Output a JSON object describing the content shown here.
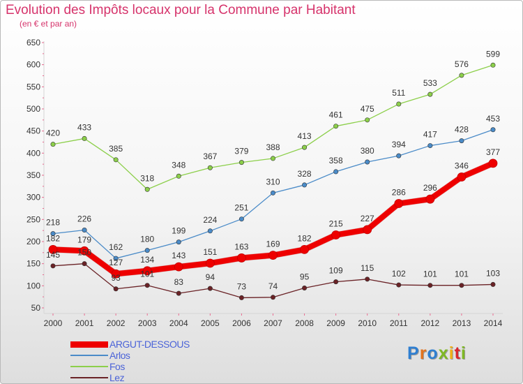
{
  "title": "Evolution des Impôts locaux pour la Commune par Habitant",
  "subtitle": "(en € et par an)",
  "logo": {
    "text": "Proxiti",
    "letter_colors": [
      "#2f7fd1",
      "#e2731e",
      "#2f7fd1",
      "#7fb824",
      "#f0b015",
      "#d8262e",
      "#7fb824"
    ]
  },
  "chart_data": {
    "type": "line",
    "x": [
      2000,
      2001,
      2002,
      2003,
      2004,
      2005,
      2006,
      2007,
      2008,
      2009,
      2010,
      2011,
      2012,
      2013,
      2014
    ],
    "ylim": [
      50,
      650
    ],
    "yticks": [
      50,
      100,
      150,
      200,
      250,
      300,
      350,
      400,
      450,
      500,
      550,
      600,
      650
    ],
    "grid": false,
    "legend_position": "bottom-left",
    "series": [
      {
        "name": "ARGUT-DESSOUS",
        "color": "#ee0000",
        "values": [
          182,
          179,
          127,
          134,
          143,
          151,
          163,
          169,
          182,
          215,
          227,
          286,
          296,
          346,
          377
        ]
      },
      {
        "name": "Arlos",
        "color": "#4a8bc8",
        "values": [
          218,
          226,
          162,
          180,
          199,
          224,
          251,
          310,
          328,
          358,
          380,
          394,
          417,
          428,
          453
        ]
      },
      {
        "name": "Fos",
        "color": "#8ccf4a",
        "values": [
          420,
          433,
          385,
          318,
          348,
          367,
          379,
          388,
          413,
          461,
          475,
          511,
          533,
          576,
          599
        ]
      },
      {
        "name": "Lez",
        "color": "#6a2226",
        "values": [
          145,
          150,
          93,
          101,
          83,
          94,
          73,
          74,
          95,
          109,
          115,
          102,
          101,
          101,
          103
        ]
      }
    ]
  }
}
